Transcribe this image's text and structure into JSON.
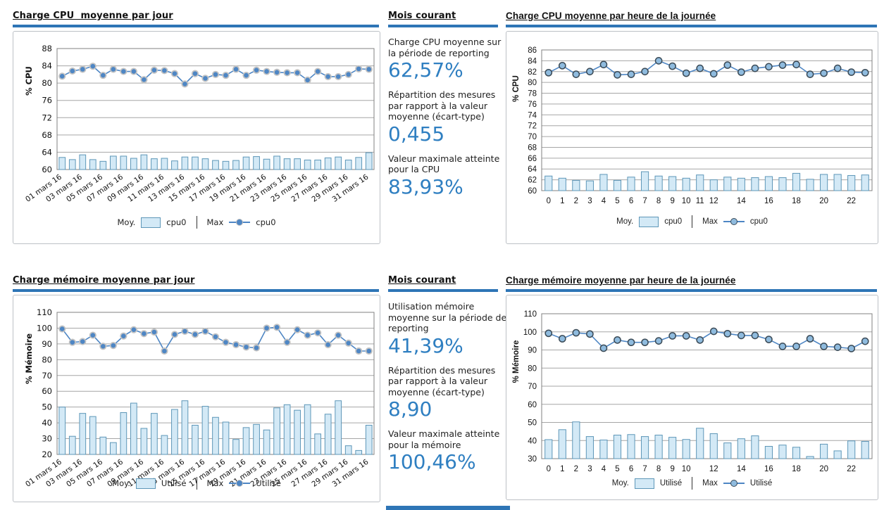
{
  "colors": {
    "rule_blue": "#2E75B6",
    "stat_value_blue": "#2F7FC1",
    "bar_fill": "#D3E9F6",
    "bar_stroke": "#5E97B8",
    "line_color": "#4E86C4",
    "grid_color": "#a6a6a6",
    "plot_border": "#808080"
  },
  "stats_blocks": [
    {
      "title": "Mois courant",
      "items": [
        {
          "label": "Charge CPU moyenne sur la période de reporting",
          "value": "62,57%"
        },
        {
          "label": "Répartition des mesures par rapport à la valeur moyenne (écart-type)",
          "value": "0,455"
        },
        {
          "label": "Valeur maximale atteinte pour la CPU",
          "value": "83,93%"
        }
      ]
    },
    {
      "title": "Mois courant",
      "items": [
        {
          "label": "Utilisation mémoire moyenne sur la période de reporting",
          "value": "41,39%"
        },
        {
          "label": "Répartition des mesures par rapport à la valeur moyenne (écart-type)",
          "value": "8,90"
        },
        {
          "label": "Valeur maximale atteinte pour la mémoire",
          "value": "100,46%"
        }
      ]
    }
  ],
  "chart_data": [
    {
      "type": "bar+line",
      "title": "Charge CPU  moyenne par jour",
      "ylabel": "% CPU",
      "ylim": [
        60,
        88
      ],
      "ystep": 4,
      "x_tick_labels": [
        "01 mars 16",
        "03 mars 16",
        "05 mars 16",
        "07 mars 16",
        "09 mars 16",
        "11 mars 16",
        "13 mars 16",
        "15 mars 16",
        "17 mars 16",
        "19 mars 16",
        "21 mars 16",
        "23 mars 16",
        "25 mars 16",
        "27 mars 16",
        "29 mars 16",
        "31 mars 16"
      ],
      "tick_every": 2,
      "legend": {
        "moy_label": "Moy.",
        "moy_series": "cpu0",
        "max_label": "Max",
        "max_series": "cpu0"
      },
      "marker_style": "dot",
      "series": [
        {
          "name": "cpu0",
          "role": "Moy.",
          "type": "bar",
          "values": [
            62.8,
            62.3,
            63.4,
            62.3,
            61.9,
            63.1,
            63.1,
            62.6,
            63.4,
            62.5,
            62.6,
            62.0,
            62.9,
            62.9,
            62.5,
            62.1,
            61.9,
            62.1,
            62.9,
            63.0,
            62.4,
            63.1,
            62.5,
            62.5,
            62.2,
            62.2,
            62.7,
            62.9,
            62.2,
            62.8,
            63.9
          ]
        },
        {
          "name": "cpu0",
          "role": "Max",
          "type": "line",
          "values": [
            81.6,
            82.8,
            83.2,
            83.9,
            81.8,
            83.2,
            82.7,
            82.7,
            80.8,
            83.0,
            82.9,
            82.2,
            79.8,
            82.2,
            81.1,
            82.0,
            81.8,
            83.2,
            81.8,
            83.0,
            82.7,
            82.5,
            82.4,
            82.4,
            80.7,
            82.7,
            81.5,
            81.5,
            82.0,
            83.3,
            83.2
          ]
        }
      ]
    },
    {
      "type": "bar+line",
      "title": "Charge CPU moyenne par heure de la journée",
      "ylabel": "% CPU",
      "ylim": [
        60,
        86
      ],
      "ystep": 2,
      "x_tick_labels": [
        "0",
        "1",
        "2",
        "3",
        "4",
        "5",
        "6",
        "7",
        "8",
        "9",
        "10",
        "11",
        "12",
        "",
        "14",
        "",
        "16",
        "",
        "18",
        "",
        "20",
        "",
        "22",
        ""
      ],
      "tick_every": 1,
      "legend": {
        "moy_label": "Moy.",
        "moy_series": "cpu0",
        "max_label": "Max",
        "max_series": "cpu0"
      },
      "marker_style": "circle",
      "series": [
        {
          "name": "cpu0",
          "role": "Moy.",
          "type": "bar",
          "values": [
            62.7,
            62.3,
            61.9,
            61.8,
            63.0,
            61.9,
            62.5,
            63.5,
            62.7,
            62.6,
            62.3,
            62.9,
            62.0,
            62.5,
            62.3,
            62.4,
            62.6,
            62.4,
            63.2,
            62.1,
            63.0,
            63.0,
            62.8,
            62.9
          ]
        },
        {
          "name": "cpu0",
          "role": "Max",
          "type": "line",
          "values": [
            81.8,
            83.1,
            81.5,
            82.0,
            83.3,
            81.4,
            81.5,
            82.0,
            84.0,
            83.0,
            81.7,
            82.6,
            81.6,
            83.2,
            81.9,
            82.6,
            82.9,
            83.2,
            83.3,
            81.5,
            81.7,
            82.6,
            81.9,
            81.8
          ]
        }
      ]
    },
    {
      "type": "bar+line",
      "title": "Charge mémoire moyenne par jour",
      "ylabel": "% Mémoire",
      "ylim": [
        20,
        110
      ],
      "ystep": 10,
      "x_tick_labels": [
        "01 mars 16",
        "03 mars 16",
        "05 mars 16",
        "07 mars 16",
        "09 mars 16",
        "11 mars 16",
        "13 mars 16",
        "15 mars 16",
        "17 mars 16",
        "19 mars 16",
        "21 mars 16",
        "23 mars 16",
        "25 mars 16",
        "27 mars 16",
        "29 mars 16",
        "31 mars 16"
      ],
      "tick_every": 2,
      "legend": {
        "moy_label": "Moy.",
        "moy_series": "Utilisé",
        "max_label": "Max",
        "max_series": "Utilisé"
      },
      "marker_style": "dot",
      "series": [
        {
          "name": "Utilisé",
          "role": "Moy.",
          "type": "bar",
          "values": [
            50,
            31.5,
            46,
            44,
            31,
            27.5,
            46.5,
            52.5,
            36.5,
            46,
            32,
            48.5,
            54,
            38.5,
            50.5,
            43.5,
            40.5,
            29.5,
            37,
            39,
            35.5,
            49.5,
            51.5,
            48,
            51.5,
            33,
            45.5,
            54,
            25.5,
            22.5,
            38.5
          ]
        },
        {
          "name": "Utilisé",
          "role": "Max",
          "type": "line",
          "values": [
            99.5,
            91,
            91.5,
            95.5,
            88.5,
            89,
            95,
            99,
            96.5,
            97.5,
            85.5,
            96,
            98,
            96,
            98,
            94.5,
            91,
            89.5,
            88,
            87.5,
            100,
            100.5,
            91,
            99,
            95.5,
            97,
            89.5,
            95.5,
            90.5,
            85.5,
            85.5
          ]
        }
      ]
    },
    {
      "type": "bar+line",
      "title": "Charge mémoire moyenne par heure de la journée",
      "ylabel": "% Mémoire",
      "ylim": [
        30,
        110
      ],
      "ystep": 10,
      "x_tick_labels": [
        "0",
        "1",
        "2",
        "3",
        "4",
        "5",
        "6",
        "7",
        "8",
        "9",
        "10",
        "",
        "12",
        "",
        "14",
        "",
        "16",
        "",
        "18",
        "",
        "20",
        "",
        "22",
        ""
      ],
      "tick_every": 1,
      "legend": {
        "moy_label": "Moy.",
        "moy_series": "Utilisé",
        "max_label": "Max",
        "max_series": "Utilisé"
      },
      "marker_style": "circle",
      "series": [
        {
          "name": "Utilisé",
          "role": "Moy.",
          "type": "bar",
          "values": [
            40.5,
            46,
            50.3,
            42.2,
            40.3,
            43,
            43.3,
            42.2,
            43,
            41.8,
            40.6,
            46.8,
            43.8,
            38.7,
            41,
            42.6,
            36.8,
            37.5,
            36.3,
            31.2,
            38,
            34.3,
            39.8,
            39.5
          ]
        },
        {
          "name": "Utilisé",
          "role": "Max",
          "type": "line",
          "values": [
            99.2,
            96.2,
            99.5,
            98.8,
            91,
            95.5,
            94.2,
            94.2,
            95,
            97.8,
            97.8,
            95.5,
            100.3,
            99,
            98,
            98,
            95.8,
            92,
            92,
            96.2,
            92,
            91.5,
            90.8,
            94.8
          ]
        }
      ]
    }
  ]
}
